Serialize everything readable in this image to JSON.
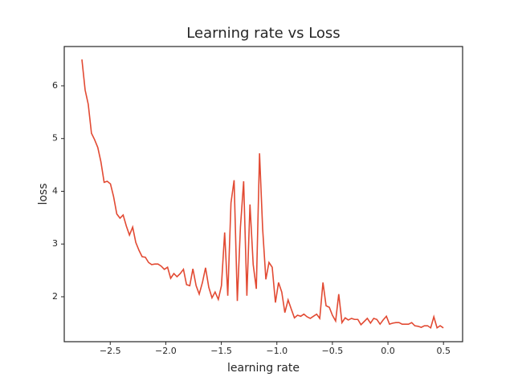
{
  "chart_data": {
    "type": "line",
    "title": "Learning rate vs Loss",
    "x_label": "learning rate",
    "y_label": "loss",
    "x": [
      -2.755,
      -2.726,
      -2.698,
      -2.669,
      -2.641,
      -2.612,
      -2.584,
      -2.555,
      -2.527,
      -2.498,
      -2.47,
      -2.441,
      -2.412,
      -2.384,
      -2.355,
      -2.327,
      -2.298,
      -2.27,
      -2.241,
      -2.213,
      -2.184,
      -2.155,
      -2.127,
      -2.098,
      -2.07,
      -2.041,
      -2.013,
      -1.984,
      -1.956,
      -1.927,
      -1.899,
      -1.87,
      -1.841,
      -1.813,
      -1.784,
      -1.756,
      -1.727,
      -1.699,
      -1.67,
      -1.642,
      -1.613,
      -1.584,
      -1.556,
      -1.527,
      -1.499,
      -1.47,
      -1.442,
      -1.413,
      -1.385,
      -1.356,
      -1.328,
      -1.299,
      -1.27,
      -1.242,
      -1.213,
      -1.185,
      -1.156,
      -1.128,
      -1.099,
      -1.071,
      -1.042,
      -1.013,
      -0.985,
      -0.956,
      -0.928,
      -0.899,
      -0.871,
      -0.842,
      -0.814,
      -0.785,
      -0.757,
      -0.728,
      -0.699,
      -0.671,
      -0.642,
      -0.614,
      -0.585,
      -0.557,
      -0.528,
      -0.5,
      -0.471,
      -0.443,
      -0.414,
      -0.385,
      -0.357,
      -0.328,
      -0.3,
      -0.271,
      -0.243,
      -0.214,
      -0.186,
      -0.157,
      -0.128,
      -0.1,
      -0.071,
      -0.043,
      -0.014,
      0.014,
      0.043,
      0.071,
      0.1,
      0.128,
      0.157,
      0.185,
      0.214,
      0.242,
      0.271,
      0.3,
      0.328,
      0.357,
      0.385,
      0.413,
      0.442,
      0.47,
      0.499
    ],
    "series": [
      {
        "color": "#e24a33",
        "values": [
          6.5,
          5.92,
          5.65,
          5.1,
          4.98,
          4.83,
          4.56,
          4.17,
          4.19,
          4.14,
          3.9,
          3.57,
          3.49,
          3.55,
          3.34,
          3.17,
          3.32,
          3.03,
          2.88,
          2.76,
          2.75,
          2.65,
          2.61,
          2.62,
          2.62,
          2.58,
          2.52,
          2.56,
          2.35,
          2.44,
          2.38,
          2.44,
          2.52,
          2.23,
          2.21,
          2.53,
          2.21,
          2.05,
          2.27,
          2.55,
          2.18,
          1.98,
          2.09,
          1.95,
          2.21,
          3.22,
          2.02,
          3.78,
          4.21,
          1.92,
          3.32,
          4.19,
          2.02,
          3.75,
          2.61,
          2.15,
          4.72,
          3.29,
          2.33,
          2.65,
          2.56,
          1.89,
          2.27,
          2.09,
          1.7,
          1.94,
          1.77,
          1.6,
          1.65,
          1.63,
          1.67,
          1.62,
          1.59,
          1.63,
          1.67,
          1.59,
          2.27,
          1.83,
          1.8,
          1.65,
          1.54,
          2.05,
          1.51,
          1.6,
          1.56,
          1.59,
          1.57,
          1.57,
          1.47,
          1.53,
          1.59,
          1.5,
          1.59,
          1.57,
          1.48,
          1.56,
          1.63,
          1.48,
          1.5,
          1.51,
          1.51,
          1.48,
          1.48,
          1.48,
          1.51,
          1.45,
          1.44,
          1.42,
          1.45,
          1.45,
          1.41,
          1.62,
          1.41,
          1.45,
          1.41
        ]
      }
    ],
    "xlim": [
      -2.914,
      0.672
    ],
    "ylim": [
      1.148,
      6.745
    ],
    "xticks": [
      {
        "value": -2.5,
        "label": "−2.5"
      },
      {
        "value": -2.0,
        "label": "−2.0"
      },
      {
        "value": -1.5,
        "label": "−1.5"
      },
      {
        "value": -1.0,
        "label": "−1.0"
      },
      {
        "value": -0.5,
        "label": "−0.5"
      },
      {
        "value": 0.0,
        "label": "0.0"
      },
      0.5
    ],
    "yticks": [
      2,
      3,
      4,
      5,
      6
    ]
  }
}
